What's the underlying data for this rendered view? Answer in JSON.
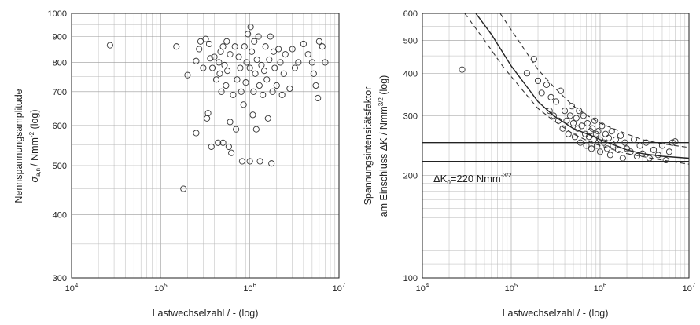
{
  "chart_data": [
    {
      "type": "scatter",
      "xlabel": "Lastwechselzahl / - (log)",
      "ylabel_line1": "Nennspannungsamplitude",
      "ylabel_line2": "/ Nmm",
      "ylabel_sup": "-2",
      "ylabel_tail": " (log)",
      "ylabel_symbol": "σ",
      "ylabel_sub": "a,n",
      "xscale": "log",
      "yscale": "log",
      "xlim": [
        10000,
        10000000
      ],
      "ylim": [
        300,
        1000
      ],
      "grid": true,
      "x_ticks": [
        {
          "base": "10",
          "exp": "4"
        },
        {
          "base": "10",
          "exp": "5"
        },
        {
          "base": "10",
          "exp": "6"
        },
        {
          "base": "10",
          "exp": "7"
        }
      ],
      "y_ticks": [
        "300",
        "400",
        "500",
        "600",
        "700",
        "800",
        "900",
        "1000"
      ],
      "y_tick_values": [
        300,
        400,
        500,
        600,
        700,
        800,
        900,
        1000
      ],
      "points": [
        [
          27000,
          865
        ],
        [
          150000,
          860
        ],
        [
          180000,
          450
        ],
        [
          200000,
          755
        ],
        [
          250000,
          580
        ],
        [
          250000,
          805
        ],
        [
          270000,
          850
        ],
        [
          280000,
          880
        ],
        [
          300000,
          780
        ],
        [
          320000,
          890
        ],
        [
          330000,
          620
        ],
        [
          340000,
          635
        ],
        [
          350000,
          870
        ],
        [
          360000,
          815
        ],
        [
          370000,
          545
        ],
        [
          380000,
          780
        ],
        [
          400000,
          820
        ],
        [
          420000,
          740
        ],
        [
          440000,
          555
        ],
        [
          450000,
          800
        ],
        [
          460000,
          760
        ],
        [
          470000,
          840
        ],
        [
          480000,
          700
        ],
        [
          500000,
          860
        ],
        [
          500000,
          555
        ],
        [
          520000,
          790
        ],
        [
          540000,
          720
        ],
        [
          550000,
          880
        ],
        [
          560000,
          770
        ],
        [
          580000,
          545
        ],
        [
          600000,
          610
        ],
        [
          600000,
          830
        ],
        [
          620000,
          530
        ],
        [
          650000,
          690
        ],
        [
          680000,
          860
        ],
        [
          700000,
          590
        ],
        [
          720000,
          740
        ],
        [
          750000,
          820
        ],
        [
          780000,
          780
        ],
        [
          800000,
          700
        ],
        [
          820000,
          510
        ],
        [
          850000,
          660
        ],
        [
          870000,
          860
        ],
        [
          900000,
          730
        ],
        [
          920000,
          800
        ],
        [
          950000,
          910
        ],
        [
          1000000,
          780
        ],
        [
          1000000,
          510
        ],
        [
          1020000,
          940
        ],
        [
          1050000,
          840
        ],
        [
          1080000,
          630
        ],
        [
          1100000,
          700
        ],
        [
          1120000,
          880
        ],
        [
          1150000,
          760
        ],
        [
          1180000,
          590
        ],
        [
          1200000,
          810
        ],
        [
          1250000,
          900
        ],
        [
          1280000,
          720
        ],
        [
          1300000,
          510
        ],
        [
          1350000,
          790
        ],
        [
          1400000,
          690
        ],
        [
          1450000,
          770
        ],
        [
          1500000,
          860
        ],
        [
          1550000,
          740
        ],
        [
          1600000,
          620
        ],
        [
          1650000,
          810
        ],
        [
          1700000,
          900
        ],
        [
          1750000,
          505
        ],
        [
          1800000,
          700
        ],
        [
          1850000,
          840
        ],
        [
          1900000,
          780
        ],
        [
          2000000,
          720
        ],
        [
          2100000,
          850
        ],
        [
          2200000,
          800
        ],
        [
          2300000,
          690
        ],
        [
          2400000,
          760
        ],
        [
          2500000,
          830
        ],
        [
          2800000,
          710
        ],
        [
          3000000,
          850
        ],
        [
          3200000,
          780
        ],
        [
          3500000,
          800
        ],
        [
          4000000,
          870
        ],
        [
          4500000,
          830
        ],
        [
          5000000,
          800
        ],
        [
          5200000,
          760
        ],
        [
          5500000,
          720
        ],
        [
          5800000,
          680
        ],
        [
          6000000,
          880
        ],
        [
          6500000,
          860
        ],
        [
          7000000,
          800
        ]
      ]
    },
    {
      "type": "scatter",
      "xlabel": "Lastwechselzahl / - (log)",
      "ylabel_line1": "Spannungsintensitätsfaktor",
      "ylabel_line2": "am Einschluss ΔK / Nmm",
      "ylabel_sup": "3/2",
      "ylabel_tail": " (log)",
      "xscale": "log",
      "yscale": "log",
      "xlim": [
        10000,
        10000000
      ],
      "ylim": [
        100,
        600
      ],
      "grid": true,
      "x_ticks": [
        {
          "base": "10",
          "exp": "4"
        },
        {
          "base": "10",
          "exp": "5"
        },
        {
          "base": "10",
          "exp": "6"
        },
        {
          "base": "10",
          "exp": "7"
        }
      ],
      "y_ticks": [
        "100",
        "200",
        "300",
        "400",
        "500",
        "600"
      ],
      "y_tick_values": [
        100,
        200,
        300,
        400,
        500,
        600
      ],
      "threshold_value": 220,
      "threshold_label_prefix": "ΔK",
      "threshold_label_sub": "0",
      "threshold_label_value": "=220 Nmm",
      "threshold_label_sup": "-3/2",
      "upper_line_value": 250,
      "fit_curve": [
        [
          40000,
          600
        ],
        [
          60000,
          520
        ],
        [
          100000,
          420
        ],
        [
          150000,
          365
        ],
        [
          200000,
          330
        ],
        [
          300000,
          300
        ],
        [
          500000,
          275
        ],
        [
          800000,
          262
        ],
        [
          1000000,
          255
        ],
        [
          1500000,
          245
        ],
        [
          2000000,
          238
        ],
        [
          3000000,
          232
        ],
        [
          5000000,
          228
        ],
        [
          10000000,
          225
        ]
      ],
      "band_upper": [
        [
          75000,
          600
        ],
        [
          120000,
          500
        ],
        [
          200000,
          410
        ],
        [
          300000,
          365
        ],
        [
          500000,
          320
        ],
        [
          800000,
          295
        ],
        [
          1000000,
          285
        ],
        [
          2000000,
          265
        ],
        [
          3000000,
          255
        ],
        [
          5000000,
          248
        ],
        [
          10000000,
          242
        ]
      ],
      "band_lower": [
        [
          30000,
          600
        ],
        [
          50000,
          500
        ],
        [
          80000,
          420
        ],
        [
          130000,
          360
        ],
        [
          200000,
          315
        ],
        [
          300000,
          290
        ],
        [
          500000,
          265
        ],
        [
          800000,
          250
        ],
        [
          1000000,
          245
        ],
        [
          2000000,
          232
        ],
        [
          5000000,
          222
        ],
        [
          10000000,
          216
        ]
      ],
      "points": [
        [
          28000,
          410
        ],
        [
          150000,
          400
        ],
        [
          180000,
          440
        ],
        [
          200000,
          380
        ],
        [
          220000,
          350
        ],
        [
          250000,
          370
        ],
        [
          270000,
          310
        ],
        [
          280000,
          340
        ],
        [
          300000,
          300
        ],
        [
          320000,
          330
        ],
        [
          340000,
          290
        ],
        [
          360000,
          355
        ],
        [
          380000,
          275
        ],
        [
          400000,
          310
        ],
        [
          420000,
          290
        ],
        [
          440000,
          265
        ],
        [
          460000,
          300
        ],
        [
          480000,
          320
        ],
        [
          500000,
          285
        ],
        [
          520000,
          260
        ],
        [
          540000,
          295
        ],
        [
          560000,
          275
        ],
        [
          580000,
          310
        ],
        [
          600000,
          250
        ],
        [
          620000,
          280
        ],
        [
          650000,
          300
        ],
        [
          680000,
          265
        ],
        [
          700000,
          245
        ],
        [
          720000,
          285
        ],
        [
          750000,
          260
        ],
        [
          780000,
          270
        ],
        [
          800000,
          240
        ],
        [
          820000,
          275
        ],
        [
          850000,
          255
        ],
        [
          870000,
          290
        ],
        [
          900000,
          265
        ],
        [
          920000,
          245
        ],
        [
          950000,
          270
        ],
        [
          1000000,
          255
        ],
        [
          1000000,
          235
        ],
        [
          1050000,
          280
        ],
        [
          1100000,
          250
        ],
        [
          1150000,
          265
        ],
        [
          1200000,
          240
        ],
        [
          1250000,
          258
        ],
        [
          1300000,
          230
        ],
        [
          1350000,
          270
        ],
        [
          1400000,
          245
        ],
        [
          1500000,
          255
        ],
        [
          1600000,
          238
        ],
        [
          1700000,
          262
        ],
        [
          1800000,
          225
        ],
        [
          1900000,
          250
        ],
        [
          2000000,
          240
        ],
        [
          2200000,
          235
        ],
        [
          2400000,
          255
        ],
        [
          2600000,
          228
        ],
        [
          2800000,
          245
        ],
        [
          3000000,
          232
        ],
        [
          3300000,
          250
        ],
        [
          3600000,
          225
        ],
        [
          4000000,
          238
        ],
        [
          4500000,
          230
        ],
        [
          5000000,
          245
        ],
        [
          5500000,
          222
        ],
        [
          6000000,
          235
        ],
        [
          6500000,
          250
        ],
        [
          7000000,
          252
        ]
      ]
    }
  ]
}
